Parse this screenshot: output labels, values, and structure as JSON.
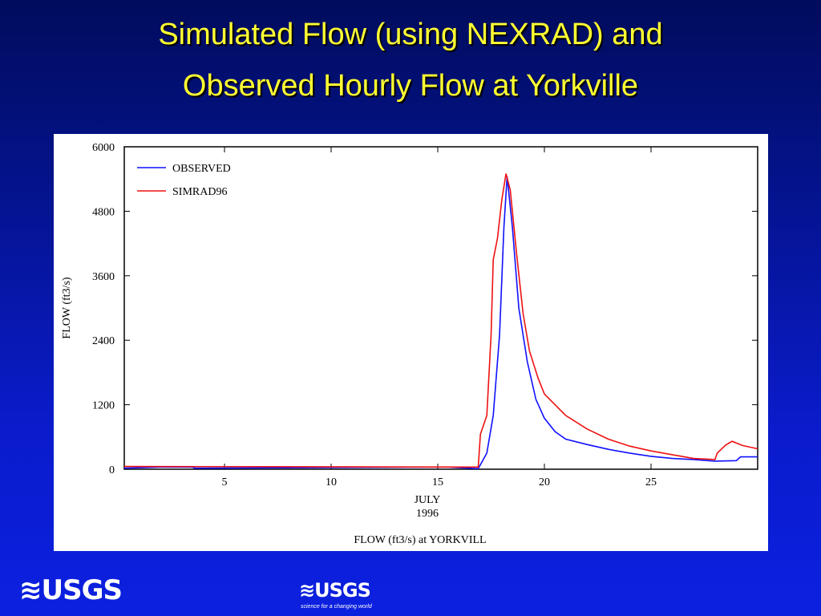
{
  "slide_title": [
    "Simulated Flow (using NEXRAD) and",
    "Observed Hourly Flow at Yorkville"
  ],
  "footer": {
    "logo_left": "USGS",
    "logo_center": "USGS",
    "tagline": "science for a changing world"
  },
  "chart_data": {
    "type": "line",
    "caption": "FLOW (ft3/s) at YORKVILL",
    "x_label": [
      "JULY",
      "1996"
    ],
    "y_label": "FLOW (ft3/s)",
    "xlim": [
      0.3,
      30
    ],
    "xticks": [
      5,
      10,
      15,
      20,
      25
    ],
    "ylim": [
      0,
      6000
    ],
    "yticks": [
      0,
      1200,
      2400,
      3600,
      4800,
      6000
    ],
    "legend": "top-left",
    "series": [
      {
        "name": "OBSERVED",
        "color": "#1010ff",
        "x": [
          0.3,
          2,
          3.5,
          3.6,
          15,
          15.5,
          16.9,
          17.3,
          17.6,
          17.9,
          18.1,
          18.25,
          18.5,
          18.8,
          19.2,
          19.6,
          20,
          20.5,
          21,
          22,
          23,
          24,
          25,
          26,
          27,
          28,
          29,
          29.2,
          30
        ],
        "values": [
          20,
          40,
          40,
          20,
          40,
          40,
          10,
          300,
          1000,
          2500,
          4500,
          5450,
          4500,
          3000,
          2000,
          1300,
          950,
          700,
          560,
          460,
          370,
          300,
          240,
          200,
          180,
          150,
          160,
          230,
          230
        ]
      },
      {
        "name": "SIMRAD96",
        "color": "#ee1111",
        "x": [
          0.3,
          16.9,
          17,
          17.3,
          17.5,
          17.6,
          17.8,
          18,
          18.2,
          18.4,
          18.7,
          19,
          19.3,
          19.7,
          20,
          21,
          22,
          23,
          24,
          25,
          26,
          27,
          28,
          28.1,
          28.5,
          28.8,
          29.3,
          30
        ],
        "values": [
          50,
          40,
          650,
          1000,
          2500,
          3900,
          4300,
          5000,
          5500,
          5200,
          4000,
          2900,
          2200,
          1700,
          1400,
          1000,
          750,
          560,
          430,
          340,
          270,
          200,
          180,
          300,
          450,
          520,
          440,
          380
        ]
      }
    ]
  }
}
